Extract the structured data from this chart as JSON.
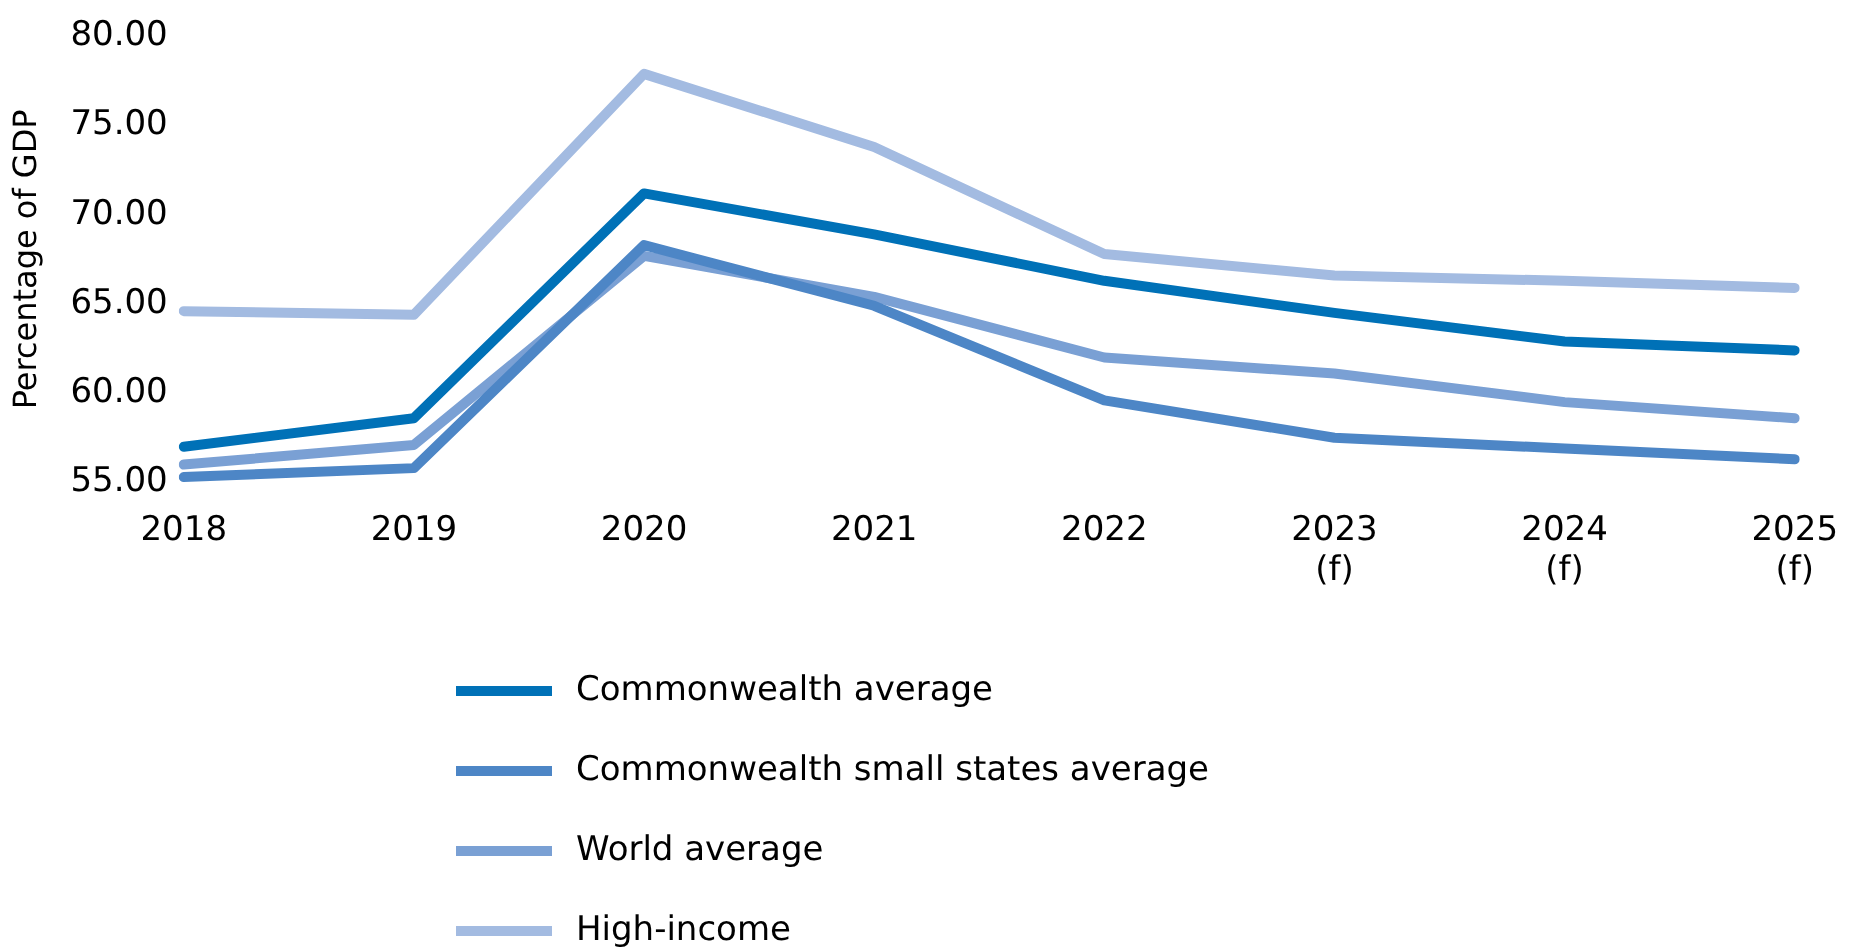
{
  "chart_data": {
    "type": "line",
    "ylabel": "Percentage of GDP",
    "categories": [
      "2018",
      "2019",
      "2020",
      "2021",
      "2022",
      "2023\n(f)",
      "2024\n(f)",
      "2025\n(f)"
    ],
    "series": [
      {
        "name": "Commonwealth average",
        "color": "#0071b7",
        "values": [
          57.0,
          58.6,
          71.2,
          68.9,
          66.3,
          64.5,
          62.9,
          62.4
        ]
      },
      {
        "name": "Commonwealth small states average",
        "color": "#4d86c6",
        "values": [
          55.3,
          55.8,
          68.3,
          64.9,
          59.6,
          57.5,
          56.9,
          56.3
        ]
      },
      {
        "name": "World average",
        "color": "#7aa0d4",
        "values": [
          56.0,
          57.1,
          67.7,
          65.4,
          62.0,
          61.1,
          59.5,
          58.6
        ]
      },
      {
        "name": "High-income",
        "color": "#a3bbe1",
        "values": [
          64.6,
          64.4,
          77.9,
          73.8,
          67.8,
          66.6,
          66.3,
          65.9
        ]
      }
    ],
    "ylim": [
      55,
      80
    ],
    "yticks": [
      {
        "value": 55,
        "label": "55.00"
      },
      {
        "value": 60,
        "label": "60.00"
      },
      {
        "value": 65,
        "label": "65.00"
      },
      {
        "value": 70,
        "label": "70.00"
      },
      {
        "value": 75,
        "label": "75.00"
      },
      {
        "value": 80,
        "label": "80.00"
      }
    ],
    "grid": false,
    "legend": "bottom",
    "marker": "none",
    "line_style": "solid"
  }
}
